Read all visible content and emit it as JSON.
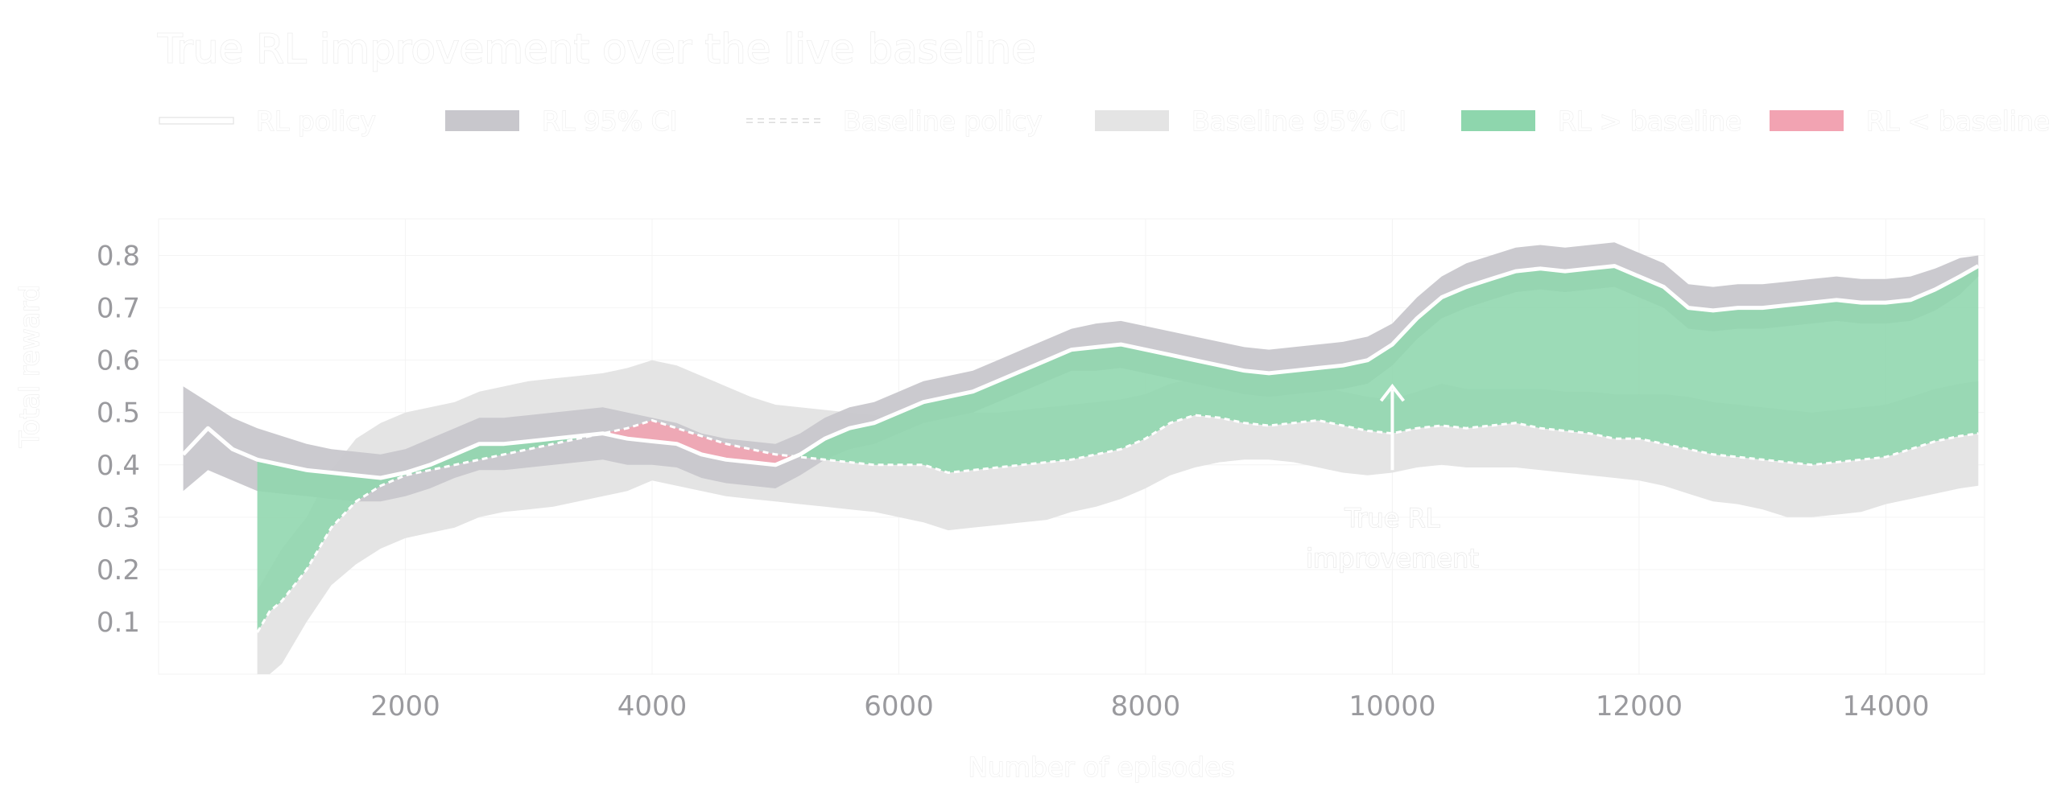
{
  "colors": {
    "rl_line": "#ffffff",
    "rl_ci": "#c8c7cc",
    "baseline_line": "#ffffff",
    "baseline_ci": "#e4e4e4",
    "rl_above": "#8ed6ad",
    "rl_below": "#f2a3b2",
    "tick": "#9a9a9e",
    "grid": "#f4f4f4"
  },
  "chart_data": {
    "type": "line",
    "title": "True RL improvement over the live baseline",
    "xlabel": "Number of episodes",
    "ylabel": "Total reward",
    "xlim": [
      0,
      14800
    ],
    "ylim": [
      0,
      0.87
    ],
    "xticks": [
      2000,
      4000,
      6000,
      8000,
      10000,
      12000,
      14000
    ],
    "yticks": [
      0.1,
      0.2,
      0.3,
      0.4,
      0.5,
      0.6,
      0.7,
      0.8
    ],
    "legend_position": "top",
    "legend": [
      {
        "label": "RL policy",
        "kind": "solid-line",
        "color_key": "rl_line"
      },
      {
        "label": "RL 95% CI",
        "kind": "swatch",
        "color_key": "rl_ci"
      },
      {
        "label": "Baseline policy",
        "kind": "dashed-line",
        "color_key": "baseline_line"
      },
      {
        "label": "Baseline 95% CI",
        "kind": "swatch",
        "color_key": "baseline_ci"
      },
      {
        "label": "RL > baseline",
        "kind": "swatch",
        "color_key": "rl_above"
      },
      {
        "label": "RL < baseline",
        "kind": "swatch",
        "color_key": "rl_below"
      }
    ],
    "annotation": {
      "lines": [
        "True RL",
        "improvement"
      ],
      "arrow_x": 10000,
      "arrow_from": 0.39,
      "arrow_to": 0.55
    },
    "rl_policy": {
      "x": [
        200,
        400,
        600,
        800,
        1000,
        1200,
        1400,
        1600,
        1800,
        2000,
        2200,
        2400,
        2600,
        2800,
        3000,
        3200,
        3400,
        3600,
        3800,
        4000,
        4200,
        4400,
        4600,
        4800,
        5000,
        5200,
        5400,
        5600,
        5800,
        6000,
        6200,
        6400,
        6600,
        6800,
        7000,
        7200,
        7400,
        7600,
        7800,
        8000,
        8200,
        8400,
        8600,
        8800,
        9000,
        9200,
        9400,
        9600,
        9800,
        10000,
        10200,
        10400,
        10600,
        10800,
        11000,
        11200,
        11400,
        11600,
        11800,
        12000,
        12200,
        12400,
        12600,
        12800,
        13000,
        13200,
        13400,
        13600,
        13800,
        14000,
        14200,
        14400,
        14600,
        14750
      ],
      "y": [
        0.42,
        0.47,
        0.43,
        0.41,
        0.4,
        0.39,
        0.385,
        0.38,
        0.375,
        0.385,
        0.4,
        0.42,
        0.44,
        0.44,
        0.445,
        0.45,
        0.455,
        0.46,
        0.45,
        0.445,
        0.44,
        0.42,
        0.41,
        0.405,
        0.4,
        0.42,
        0.45,
        0.47,
        0.48,
        0.5,
        0.52,
        0.53,
        0.54,
        0.56,
        0.58,
        0.6,
        0.62,
        0.625,
        0.63,
        0.62,
        0.61,
        0.6,
        0.59,
        0.58,
        0.575,
        0.58,
        0.585,
        0.59,
        0.6,
        0.63,
        0.68,
        0.72,
        0.74,
        0.755,
        0.77,
        0.775,
        0.77,
        0.775,
        0.78,
        0.76,
        0.74,
        0.7,
        0.695,
        0.7,
        0.7,
        0.705,
        0.71,
        0.715,
        0.71,
        0.71,
        0.715,
        0.735,
        0.76,
        0.78
      ]
    },
    "rl_ci": {
      "upper": [
        0.55,
        0.52,
        0.49,
        0.47,
        0.455,
        0.44,
        0.43,
        0.425,
        0.42,
        0.43,
        0.45,
        0.47,
        0.49,
        0.49,
        0.495,
        0.5,
        0.505,
        0.51,
        0.5,
        0.49,
        0.48,
        0.46,
        0.45,
        0.445,
        0.44,
        0.46,
        0.49,
        0.51,
        0.52,
        0.54,
        0.56,
        0.57,
        0.58,
        0.6,
        0.62,
        0.64,
        0.66,
        0.67,
        0.675,
        0.665,
        0.655,
        0.645,
        0.635,
        0.625,
        0.62,
        0.625,
        0.63,
        0.635,
        0.645,
        0.67,
        0.72,
        0.76,
        0.785,
        0.8,
        0.815,
        0.82,
        0.815,
        0.82,
        0.825,
        0.805,
        0.785,
        0.745,
        0.74,
        0.745,
        0.745,
        0.75,
        0.755,
        0.76,
        0.755,
        0.755,
        0.76,
        0.775,
        0.795,
        0.8
      ],
      "lower": [
        0.35,
        0.39,
        0.37,
        0.35,
        0.345,
        0.34,
        0.335,
        0.33,
        0.33,
        0.34,
        0.355,
        0.375,
        0.39,
        0.39,
        0.395,
        0.4,
        0.405,
        0.41,
        0.4,
        0.4,
        0.395,
        0.375,
        0.365,
        0.36,
        0.355,
        0.38,
        0.41,
        0.43,
        0.44,
        0.46,
        0.48,
        0.49,
        0.5,
        0.52,
        0.54,
        0.56,
        0.58,
        0.58,
        0.585,
        0.575,
        0.565,
        0.555,
        0.545,
        0.535,
        0.53,
        0.535,
        0.54,
        0.545,
        0.555,
        0.59,
        0.64,
        0.68,
        0.7,
        0.715,
        0.73,
        0.735,
        0.73,
        0.735,
        0.74,
        0.72,
        0.7,
        0.66,
        0.655,
        0.66,
        0.66,
        0.665,
        0.67,
        0.675,
        0.67,
        0.67,
        0.675,
        0.695,
        0.725,
        0.76
      ]
    },
    "baseline_policy": {
      "x": [
        800,
        900,
        1000,
        1200,
        1400,
        1600,
        1800,
        2000,
        2200,
        2400,
        2600,
        2800,
        3000,
        3200,
        3400,
        3600,
        3800,
        4000,
        4200,
        4400,
        4600,
        4800,
        5000,
        5200,
        5400,
        5600,
        5800,
        6000,
        6200,
        6400,
        6600,
        6800,
        7000,
        7200,
        7400,
        7600,
        7800,
        8000,
        8200,
        8400,
        8600,
        8800,
        9000,
        9200,
        9400,
        9600,
        9800,
        10000,
        10200,
        10400,
        10600,
        10800,
        11000,
        11200,
        11400,
        11600,
        11800,
        12000,
        12200,
        12400,
        12600,
        12800,
        13000,
        13200,
        13400,
        13600,
        13800,
        14000,
        14200,
        14400,
        14600,
        14750
      ],
      "y": [
        0.08,
        0.12,
        0.14,
        0.2,
        0.28,
        0.33,
        0.36,
        0.38,
        0.39,
        0.4,
        0.41,
        0.42,
        0.43,
        0.44,
        0.45,
        0.46,
        0.47,
        0.485,
        0.47,
        0.455,
        0.44,
        0.43,
        0.42,
        0.415,
        0.41,
        0.405,
        0.4,
        0.4,
        0.4,
        0.385,
        0.39,
        0.395,
        0.4,
        0.405,
        0.41,
        0.42,
        0.43,
        0.45,
        0.48,
        0.495,
        0.49,
        0.48,
        0.475,
        0.48,
        0.485,
        0.475,
        0.465,
        0.46,
        0.47,
        0.475,
        0.47,
        0.475,
        0.48,
        0.47,
        0.465,
        0.46,
        0.45,
        0.45,
        0.44,
        0.43,
        0.42,
        0.415,
        0.41,
        0.405,
        0.4,
        0.405,
        0.41,
        0.415,
        0.43,
        0.445,
        0.455,
        0.46
      ]
    },
    "baseline_ci": {
      "upper": [
        0.16,
        0.2,
        0.24,
        0.3,
        0.39,
        0.45,
        0.48,
        0.5,
        0.51,
        0.52,
        0.54,
        0.55,
        0.56,
        0.565,
        0.57,
        0.575,
        0.585,
        0.6,
        0.59,
        0.57,
        0.55,
        0.53,
        0.515,
        0.51,
        0.505,
        0.5,
        0.495,
        0.49,
        0.49,
        0.49,
        0.5,
        0.5,
        0.505,
        0.51,
        0.515,
        0.52,
        0.525,
        0.535,
        0.555,
        0.565,
        0.57,
        0.56,
        0.55,
        0.55,
        0.55,
        0.54,
        0.53,
        0.525,
        0.54,
        0.555,
        0.545,
        0.545,
        0.545,
        0.545,
        0.54,
        0.54,
        0.535,
        0.535,
        0.535,
        0.53,
        0.52,
        0.515,
        0.51,
        0.505,
        0.5,
        0.505,
        0.51,
        0.515,
        0.53,
        0.545,
        0.555,
        0.56
      ],
      "lower": [
        0.0,
        0.0,
        0.02,
        0.1,
        0.17,
        0.21,
        0.24,
        0.26,
        0.27,
        0.28,
        0.3,
        0.31,
        0.315,
        0.32,
        0.33,
        0.34,
        0.35,
        0.37,
        0.36,
        0.35,
        0.34,
        0.335,
        0.33,
        0.325,
        0.32,
        0.315,
        0.31,
        0.3,
        0.29,
        0.275,
        0.28,
        0.285,
        0.29,
        0.295,
        0.31,
        0.32,
        0.335,
        0.355,
        0.38,
        0.395,
        0.405,
        0.41,
        0.41,
        0.405,
        0.395,
        0.385,
        0.38,
        0.385,
        0.395,
        0.4,
        0.395,
        0.395,
        0.395,
        0.39,
        0.385,
        0.38,
        0.375,
        0.37,
        0.36,
        0.345,
        0.33,
        0.325,
        0.315,
        0.3,
        0.3,
        0.305,
        0.31,
        0.325,
        0.335,
        0.345,
        0.355,
        0.36
      ]
    }
  }
}
